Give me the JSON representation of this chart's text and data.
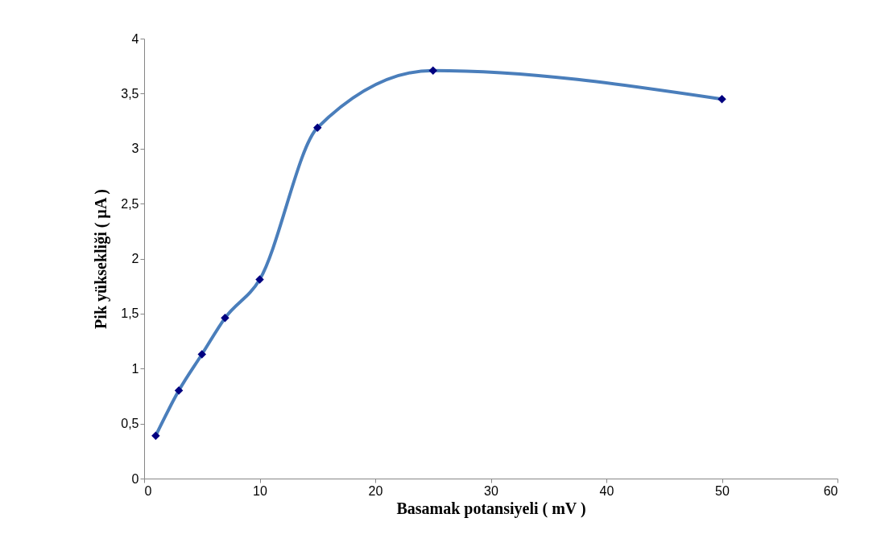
{
  "chart_data": {
    "type": "line",
    "xlabel": "Basamak potansiyeli ( mV )",
    "ylabel": "Pik yüksekliği ( µA )",
    "x": [
      1,
      3,
      5,
      7,
      10,
      15,
      25,
      50
    ],
    "series": [
      {
        "color": "#4a7ebb",
        "values": [
          0.39,
          0.8,
          1.13,
          1.46,
          1.81,
          3.19,
          3.71,
          3.45
        ]
      }
    ],
    "xlim": [
      0,
      60
    ],
    "xticks": [
      0,
      10,
      20,
      30,
      40,
      50,
      60
    ],
    "ylim": [
      0,
      4
    ],
    "yticks": [
      0,
      {
        "value": 0.5,
        "label": "0,5"
      },
      1,
      {
        "value": 1.5,
        "label": "1,5"
      },
      2,
      {
        "value": 2.5,
        "label": "2,5"
      },
      3,
      {
        "value": 3.5,
        "label": "3,5"
      },
      4
    ],
    "marker": "diamond",
    "grid": false
  }
}
